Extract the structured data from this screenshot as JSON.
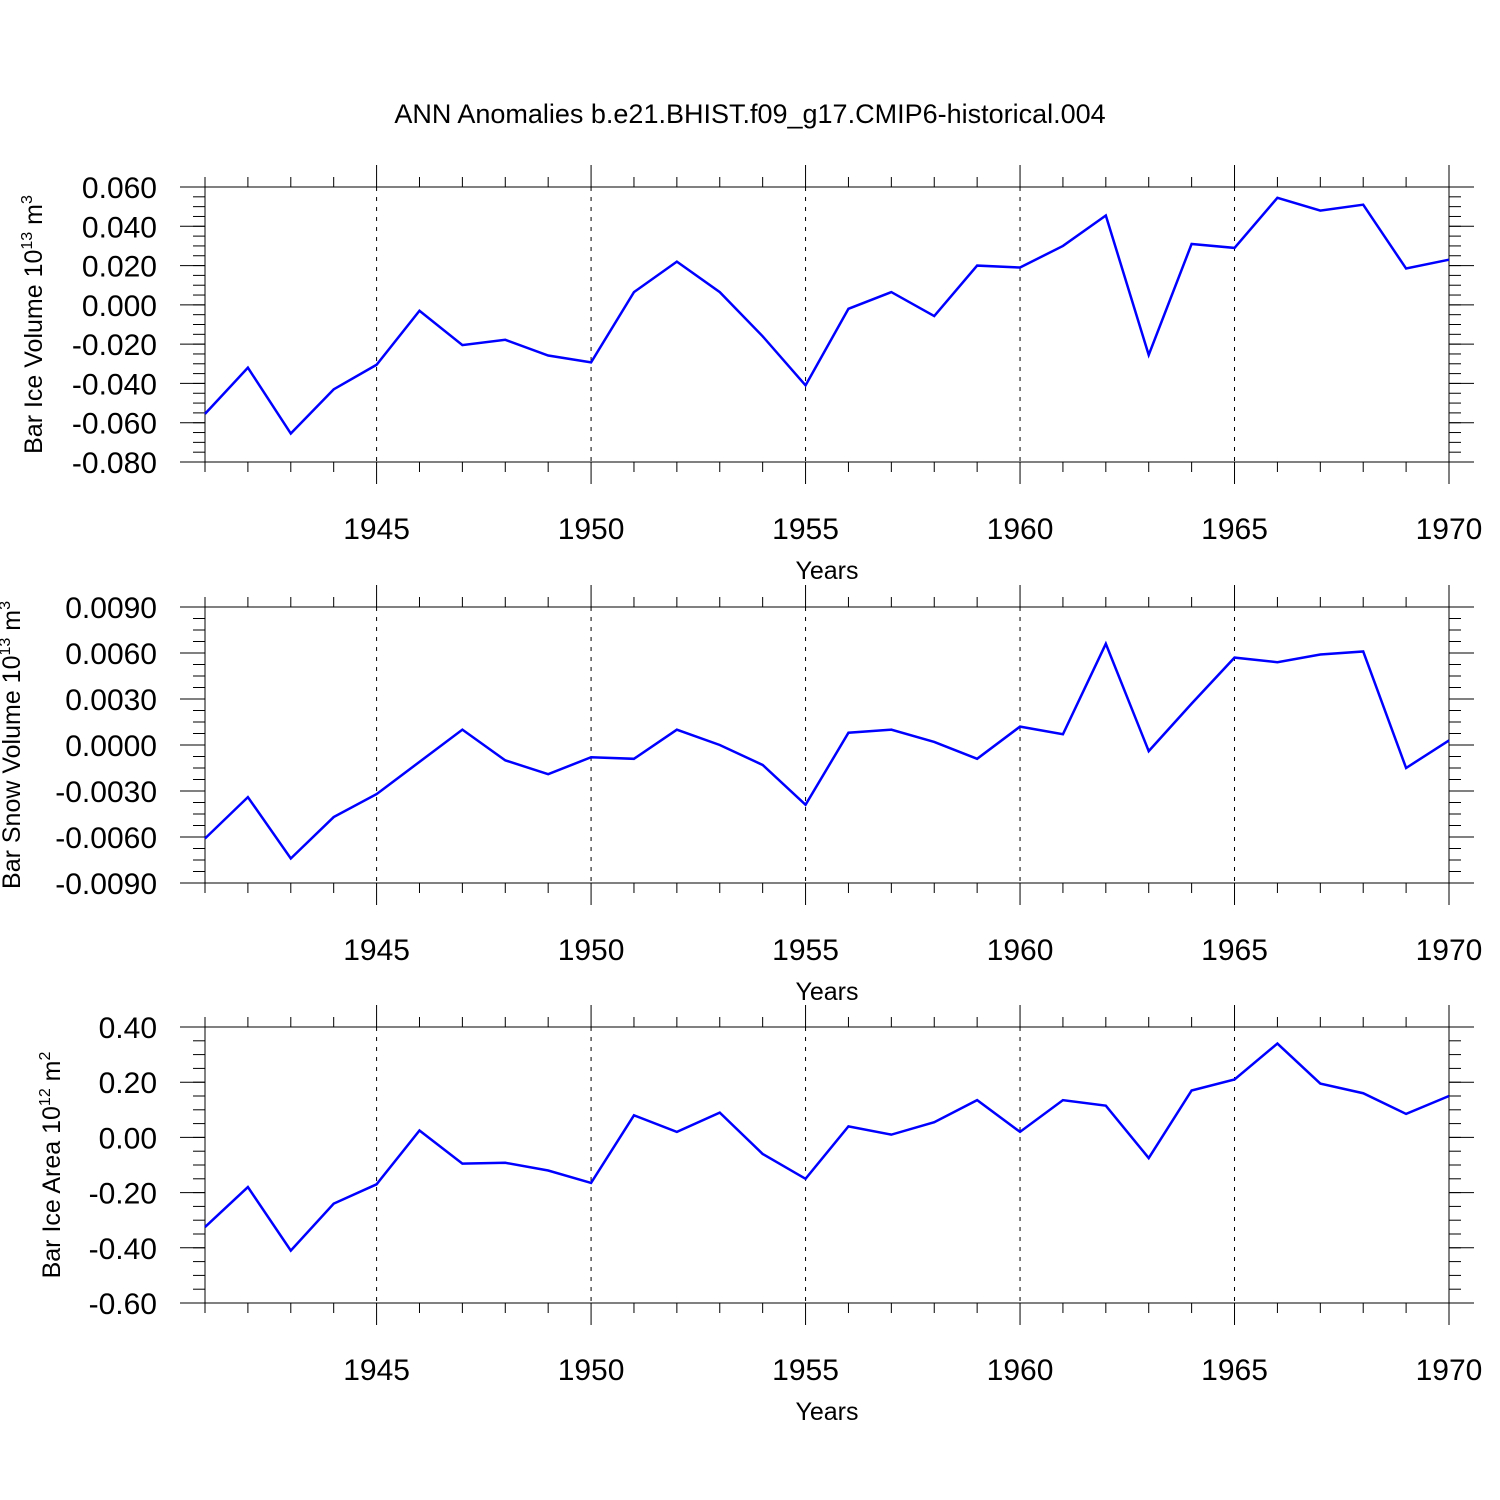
{
  "figure_title": "ANN Anomalies b.e21.BHIST.f09_g17.CMIP6-historical.004",
  "chart_data": [
    {
      "type": "line",
      "title": "",
      "xlabel": "Years",
      "ylabel_main": "Bar Ice Volume 10",
      "ylabel_exp": "13",
      "ylabel_unit": "m",
      "ylabel_unit_exp": "3",
      "xlim": [
        1941,
        1970
      ],
      "ylim": [
        -0.08,
        0.06
      ],
      "x_ticks": [
        1945,
        1950,
        1955,
        1960,
        1965,
        1970
      ],
      "y_ticks": [
        -0.08,
        -0.06,
        -0.04,
        -0.02,
        0.0,
        0.02,
        0.04,
        0.06
      ],
      "y_tick_labels": [
        "-0.080",
        "-0.060",
        "-0.040",
        "-0.020",
        "0.000",
        "0.020",
        "0.040",
        "0.060"
      ],
      "y_minor_step": 0.005,
      "grid": "vertical dashed at major x ticks",
      "x": [
        1941,
        1942,
        1943,
        1944,
        1945,
        1946,
        1947,
        1948,
        1949,
        1950,
        1951,
        1952,
        1953,
        1954,
        1955,
        1956,
        1957,
        1958,
        1959,
        1960,
        1961,
        1962,
        1963,
        1964,
        1965,
        1966,
        1967,
        1968,
        1969,
        1970
      ],
      "series": [
        {
          "color": "#0000ff",
          "values": [
            -0.0555,
            -0.032,
            -0.0655,
            -0.043,
            -0.0305,
            -0.003,
            -0.0205,
            -0.0178,
            -0.0258,
            -0.0293,
            0.0065,
            0.022,
            0.0065,
            -0.016,
            -0.041,
            -0.002,
            0.0065,
            -0.0057,
            0.02,
            0.019,
            0.03,
            0.0455,
            -0.0255,
            0.031,
            0.029,
            0.0545,
            0.048,
            0.051,
            0.0185,
            0.023
          ]
        }
      ]
    },
    {
      "type": "line",
      "title": "",
      "xlabel": "Years",
      "ylabel_main": "Bar Snow Volume 10",
      "ylabel_exp": "13",
      "ylabel_unit": "m",
      "ylabel_unit_exp": "3",
      "xlim": [
        1941,
        1970
      ],
      "ylim": [
        -0.009,
        0.009
      ],
      "x_ticks": [
        1945,
        1950,
        1955,
        1960,
        1965,
        1970
      ],
      "y_ticks": [
        -0.009,
        -0.006,
        -0.003,
        0.0,
        0.003,
        0.006,
        0.009
      ],
      "y_tick_labels": [
        "-0.0090",
        "-0.0060",
        "-0.0030",
        "0.0000",
        "0.0030",
        "0.0060",
        "0.0090"
      ],
      "y_minor_step": 0.00075,
      "grid": "vertical dashed at major x ticks",
      "x": [
        1941,
        1942,
        1943,
        1944,
        1945,
        1946,
        1947,
        1948,
        1949,
        1950,
        1951,
        1952,
        1953,
        1954,
        1955,
        1956,
        1957,
        1958,
        1959,
        1960,
        1961,
        1962,
        1963,
        1964,
        1965,
        1966,
        1967,
        1968,
        1969,
        1970
      ],
      "series": [
        {
          "color": "#0000ff",
          "values": [
            -0.0061,
            -0.0034,
            -0.0074,
            -0.0047,
            -0.0032,
            -0.0011,
            0.001,
            -0.001,
            -0.0019,
            -0.0008,
            -0.0009,
            0.001,
            0.0,
            -0.0013,
            -0.0039,
            0.0008,
            0.001,
            0.0002,
            -0.0009,
            0.0012,
            0.0007,
            0.0066,
            -0.0004,
            0.0027,
            0.0057,
            0.0054,
            0.0059,
            0.0061,
            -0.0015,
            0.0003
          ]
        }
      ]
    },
    {
      "type": "line",
      "title": "",
      "xlabel": "Years",
      "ylabel_main": "Bar Ice Area 10",
      "ylabel_exp": "12",
      "ylabel_unit": "m",
      "ylabel_unit_exp": "2",
      "xlim": [
        1941,
        1970
      ],
      "ylim": [
        -0.6,
        0.4
      ],
      "x_ticks": [
        1945,
        1950,
        1955,
        1960,
        1965,
        1970
      ],
      "y_ticks": [
        -0.6,
        -0.4,
        -0.2,
        0.0,
        0.2,
        0.4
      ],
      "y_tick_labels": [
        "-0.60",
        "-0.40",
        "-0.20",
        "0.00",
        "0.20",
        "0.40"
      ],
      "y_minor_step": 0.05,
      "grid": "vertical dashed at major x ticks",
      "x": [
        1941,
        1942,
        1943,
        1944,
        1945,
        1946,
        1947,
        1948,
        1949,
        1950,
        1951,
        1952,
        1953,
        1954,
        1955,
        1956,
        1957,
        1958,
        1959,
        1960,
        1961,
        1962,
        1963,
        1964,
        1965,
        1966,
        1967,
        1968,
        1969,
        1970
      ],
      "series": [
        {
          "color": "#0000ff",
          "values": [
            -0.325,
            -0.18,
            -0.41,
            -0.24,
            -0.17,
            0.025,
            -0.095,
            -0.092,
            -0.12,
            -0.165,
            0.08,
            0.02,
            0.09,
            -0.06,
            -0.15,
            0.04,
            0.01,
            0.055,
            0.135,
            0.02,
            0.135,
            0.115,
            -0.075,
            0.17,
            0.21,
            0.34,
            0.195,
            0.16,
            0.085,
            0.15
          ]
        }
      ]
    }
  ]
}
